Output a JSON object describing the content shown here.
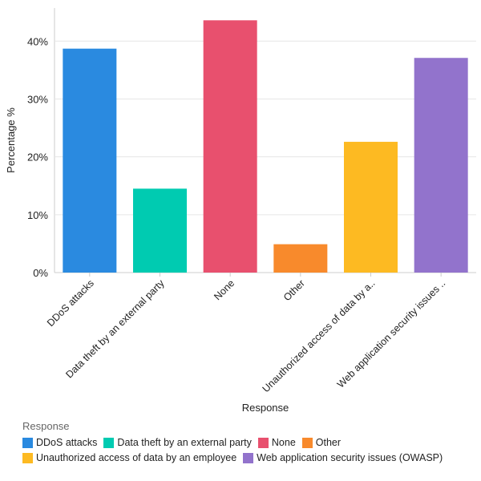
{
  "chart_data": {
    "type": "bar",
    "xlabel": "Response",
    "ylabel": "Percentage %",
    "ylim": [
      0,
      45
    ],
    "yticks": [
      0,
      10,
      20,
      30,
      40
    ],
    "ytick_labels": [
      "0%",
      "10%",
      "20%",
      "30%",
      "40%"
    ],
    "grid": true,
    "categories": [
      "DDoS attacks",
      "Data theft by an external party",
      "None",
      "Other",
      "Unauthorized access of data by an employee",
      "Web application security issues (OWASP)"
    ],
    "tick_labels": [
      "DDoS attacks",
      "Data theft by an external party",
      "None",
      "Other",
      "Unauthorized access of data by a..",
      "Web application security issues .."
    ],
    "values": [
      38.7,
      14.5,
      43.6,
      4.9,
      22.6,
      37.1
    ],
    "colors": [
      "#2a8ae0",
      "#00cbb1",
      "#e8506e",
      "#f88a2c",
      "#fdba22",
      "#9273cc"
    ],
    "legend": {
      "title": "Response",
      "placement": "bottom"
    }
  }
}
